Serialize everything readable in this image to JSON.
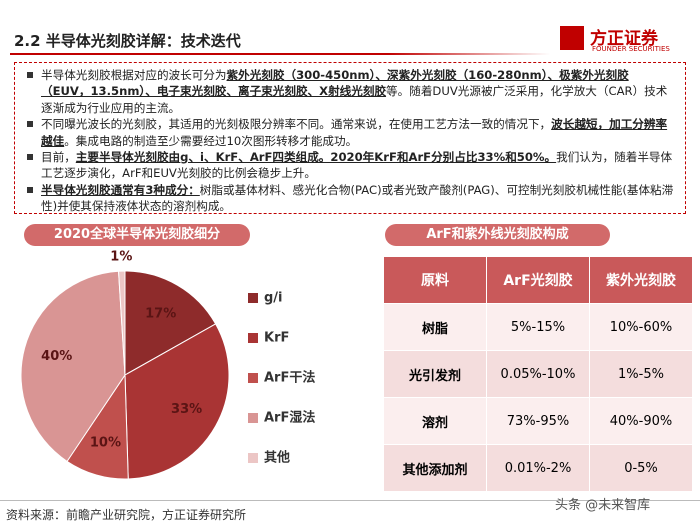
{
  "header": {
    "title": "2.2 半导体光刻胶详解：技术迭代",
    "logo_name": "方正证券",
    "logo_en": "FOUNDER SECURITIES"
  },
  "bullets": [
    {
      "segments": [
        {
          "text": "半导体光刻胶根据对应的波长可分为",
          "style": "plain"
        },
        {
          "text": "紫外光刻胶（300-450nm）、深紫外光刻胶（160-280nm）、极紫外光刻胶（EUV，13.5nm）、电子束光刻胶、离子束光刻胶、X射线光刻胶",
          "style": "bold-underline"
        },
        {
          "text": "等。随着DUV光源被广泛采用，化学放大（CAR）技术逐渐成为行业应用的主流。",
          "style": "plain"
        }
      ]
    },
    {
      "segments": [
        {
          "text": "不同曝光波长的光刻胶，其适用的光刻极限分辨率不同。通常来说，在使用工艺方法一致的情况下，",
          "style": "plain"
        },
        {
          "text": "波长越短，加工分辨率越佳",
          "style": "bold-underline"
        },
        {
          "text": "。集成电路的制造至少需要经过10次图形转移才能成功。",
          "style": "plain"
        }
      ]
    },
    {
      "segments": [
        {
          "text": "目前，",
          "style": "plain"
        },
        {
          "text": "主要半导体光刻胶由g、i、KrF、ArF四类组成。2020年KrF和ArF分别占比33%和50%。",
          "style": "bold-underline"
        },
        {
          "text": "我们认为，随着半导体工艺逐步演化，ArF和EUV光刻胶的比例会稳步上升。",
          "style": "plain"
        }
      ]
    },
    {
      "segments": [
        {
          "text": "半导体光刻胶通常有3种成分：",
          "style": "bold-underline"
        },
        {
          "text": "树脂或基体材料、感光化合物(PAC)或者光致产酸剂(PAG)、可控制光刻胶机械性能(基体粘滞性)并使其保持液体状态的溶剂构成。",
          "style": "plain"
        }
      ]
    }
  ],
  "chart_data": {
    "type": "pie",
    "title": "2020全球半导体光刻胶细分",
    "categories": [
      "g/i",
      "KrF",
      "ArF干法",
      "ArF湿法",
      "其他"
    ],
    "values": [
      17,
      33,
      10,
      40,
      1
    ],
    "value_labels": [
      "17%",
      "33%",
      "10%",
      "40%",
      "1%"
    ],
    "colors": [
      "#8e2b2b",
      "#a93434",
      "#c0504d",
      "#d99594",
      "#ecc6c5"
    ]
  },
  "table": {
    "title": "ArF和紫外线光刻胶构成",
    "header": [
      "原料",
      "ArF光刻胶",
      "紫外光刻胶"
    ],
    "rows": [
      [
        "树脂",
        "5%-15%",
        "10%-60%"
      ],
      [
        "光引发剂",
        "0.05%-10%",
        "1%-5%"
      ],
      [
        "溶剂",
        "73%-95%",
        "40%-90%"
      ],
      [
        "其他添加剂",
        "0.01%-2%",
        "0-5%"
      ]
    ]
  },
  "footer": {
    "source": "资料来源：前瞻产业研究院，方正证券研究所",
    "watermark": "头条 @未来智库"
  }
}
